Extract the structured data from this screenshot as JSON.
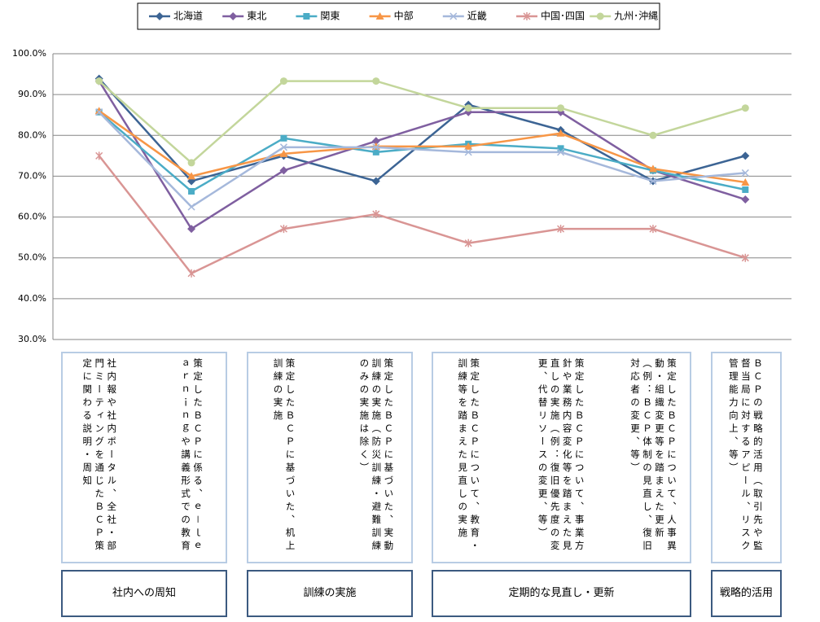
{
  "chart_data": {
    "type": "line",
    "categories": [
      "社内報や社内ポータル、全社・部門ミーティングを通じたＢＣＰ策定に関わる説明・周知",
      "策定したＢＣＰに係る、ｅ－ｌｅａｒｎｉｎｇや講義形式での教育",
      "策定したＢＣＰに基づいた、机上訓練の実施",
      "策定したＢＣＰに基づいた、実動訓練の実施（防災訓練・避難訓練のみの実施は除く）",
      "策定したＢＣＰについて、教育・訓練等を踏まえた見直しの実施",
      "策定したＢＣＰについて、事業方針や業務内容変化等を踏まえた見直しの実施（例：復旧優先度の変更、代替リソースの変更、等）",
      "策定したＢＣＰについて、人事異動・組織変更等を踏まえた更新（例：ＢＣＰ体制の見直し、復旧対応者の変更、等）",
      "ＢＣＰの戦略的活用（取引先や監督当局に対するアピール、リスク管理能力向上、等）"
    ],
    "groups": [
      "社内への周知",
      "訓練の実施",
      "定期的な見直し・更新",
      "戦略的活用"
    ],
    "series": [
      {
        "name": "北海道",
        "color": "#3c6494",
        "marker": "diamond",
        "values": [
          93.9,
          68.8,
          75.0,
          68.8,
          87.5,
          81.3,
          68.8,
          75.0
        ]
      },
      {
        "name": "東北",
        "color": "#7f5fa0",
        "marker": "diamond",
        "values": [
          93.3,
          57.1,
          71.4,
          78.6,
          85.7,
          85.7,
          71.4,
          64.3
        ]
      },
      {
        "name": "関東",
        "color": "#4bacc6",
        "marker": "square",
        "values": [
          85.7,
          66.3,
          79.3,
          75.9,
          77.9,
          76.8,
          71.4,
          66.7
        ]
      },
      {
        "name": "中部",
        "color": "#f79646",
        "marker": "triangle",
        "values": [
          86.0,
          70.0,
          75.5,
          77.3,
          77.3,
          80.5,
          71.8,
          68.5
        ]
      },
      {
        "name": "近畿",
        "color": "#a5b8db",
        "marker": "x",
        "values": [
          85.7,
          62.5,
          77.1,
          77.1,
          75.9,
          75.9,
          68.8,
          70.8
        ]
      },
      {
        "name": "中国･四国",
        "color": "#d99594",
        "marker": "star",
        "values": [
          75.0,
          46.2,
          57.1,
          60.7,
          53.6,
          57.1,
          57.1,
          50.0
        ]
      },
      {
        "name": "九州･沖縄",
        "color": "#c3d69b",
        "marker": "circle",
        "values": [
          93.3,
          73.3,
          93.3,
          93.3,
          86.7,
          86.7,
          80.0,
          86.7
        ]
      }
    ],
    "ylim": [
      30,
      100
    ],
    "yticks": [
      {
        "value": 30,
        "label": "30.0%"
      },
      {
        "value": 40,
        "label": "40.0%"
      },
      {
        "value": 50,
        "label": "50.0%"
      },
      {
        "value": 60,
        "label": "60.0%"
      },
      {
        "value": 70,
        "label": "70.0%"
      },
      {
        "value": 80,
        "label": "80.0%"
      },
      {
        "value": 90,
        "label": "90.0%"
      },
      {
        "value": 100,
        "label": "100.0%"
      }
    ],
    "grid": true,
    "legend": "top"
  }
}
